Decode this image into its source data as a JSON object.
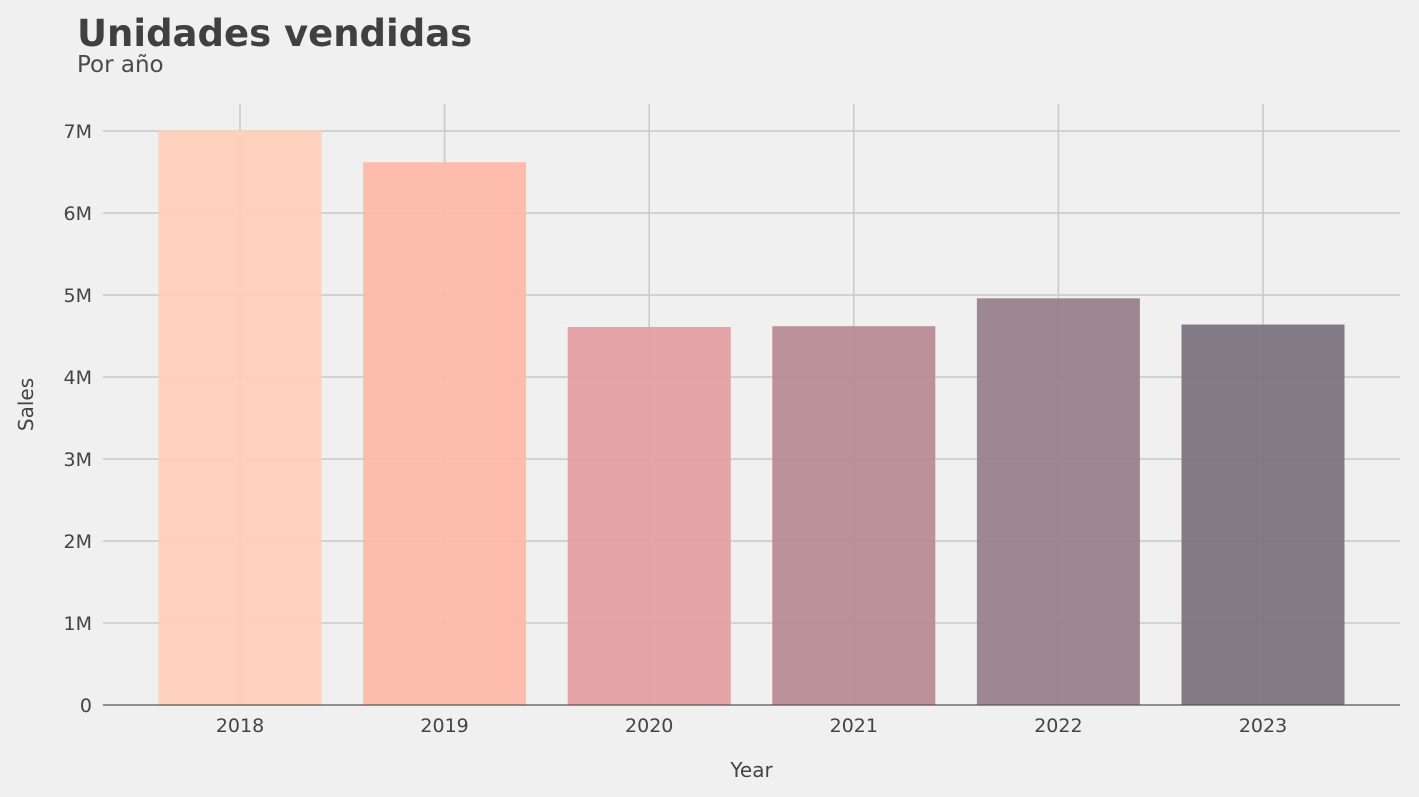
{
  "chart_data": {
    "type": "bar",
    "title": "Unidades vendidas",
    "subtitle": "Por año",
    "xlabel": "Year",
    "ylabel": "Sales",
    "categories": [
      "2018",
      "2019",
      "2020",
      "2021",
      "2022",
      "2023"
    ],
    "values": [
      7010000,
      6620000,
      4610000,
      4620000,
      4960000,
      4640000
    ],
    "ylim": [
      0,
      7330000
    ],
    "yticks": [
      0,
      1000000,
      2000000,
      3000000,
      4000000,
      5000000,
      6000000,
      7000000
    ],
    "ytick_labels": [
      "0",
      "1M",
      "2M",
      "3M",
      "4M",
      "5M",
      "6M",
      "7M"
    ],
    "grid": true,
    "colors": [
      "#fdcfb7",
      "#fdb8a8",
      "#e49fa2",
      "#b88b93",
      "#98818a",
      "#7b747f"
    ]
  }
}
